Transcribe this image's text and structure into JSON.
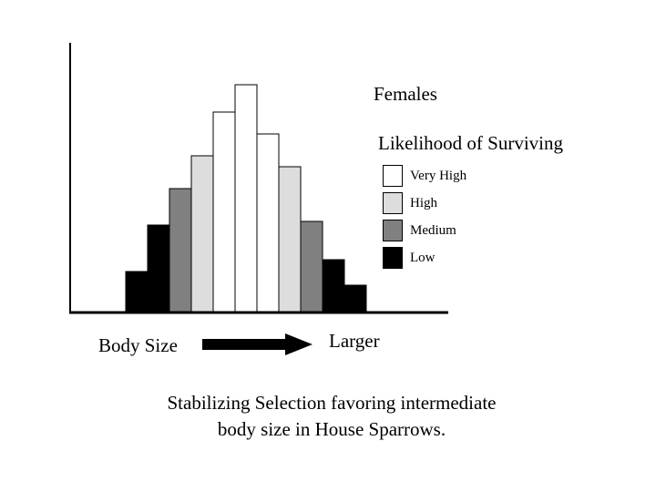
{
  "chart_data": {
    "type": "bar",
    "title": "Females",
    "xlabel": "Body Size",
    "x_direction_label": "Larger",
    "bins": 11,
    "values": [
      45,
      96,
      136,
      172,
      220,
      250,
      196,
      160,
      100,
      58,
      30
    ],
    "survival": [
      "Low",
      "Low",
      "Medium",
      "High",
      "Very High",
      "Very High",
      "Very High",
      "High",
      "Medium",
      "Low",
      "Low"
    ],
    "grid": false
  },
  "legend": {
    "title": "Likelihood of Surviving",
    "items": [
      {
        "label": "Very High",
        "color": "#ffffff"
      },
      {
        "label": "High",
        "color": "#dddddd"
      },
      {
        "label": "Medium",
        "color": "#808080"
      },
      {
        "label": "Low",
        "color": "#000000"
      }
    ]
  },
  "caption": {
    "line1": "Stabilizing Selection favoring intermediate",
    "line2": "body size in House Sparrows."
  }
}
